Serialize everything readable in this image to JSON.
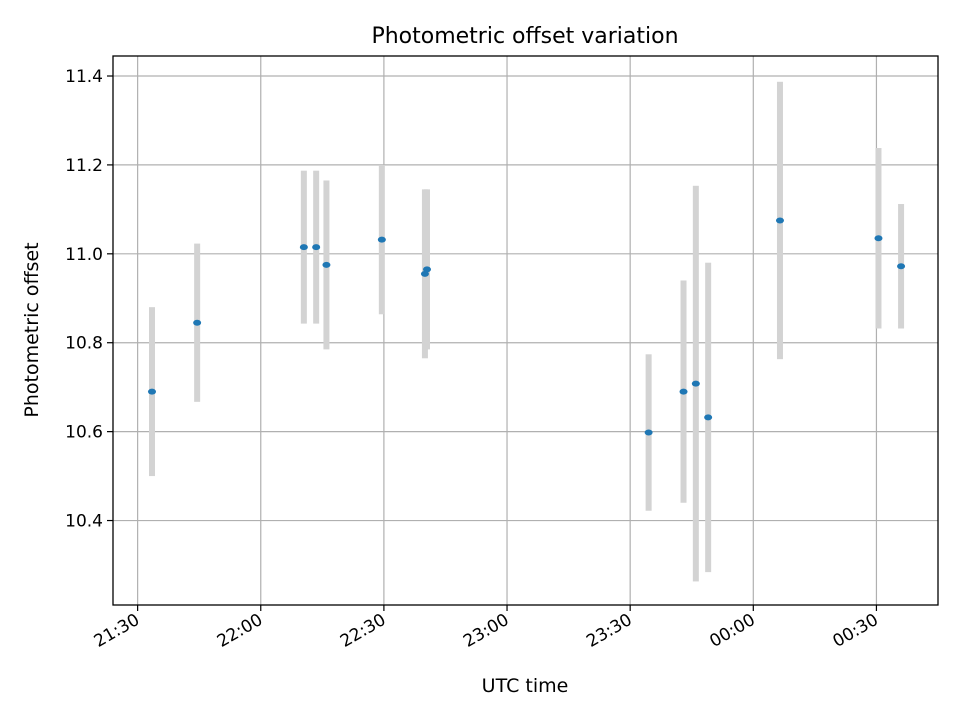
{
  "chart_data": {
    "type": "scatter",
    "title": "Photometric offset variation",
    "xlabel": "UTC time",
    "ylabel": "Photometric offset",
    "x_axis_type": "time",
    "xlim": [
      "21:24",
      "00:45"
    ],
    "ylim": [
      10.21,
      11.445
    ],
    "grid": true,
    "colors": {
      "points": "#1f77b4",
      "error_bars": "#d3d3d3",
      "grid": "#b0b0b0"
    },
    "x_ticks": [
      {
        "value": "21:30",
        "label": "21:30"
      },
      {
        "value": "22:00",
        "label": "22:00"
      },
      {
        "value": "22:30",
        "label": "22:30"
      },
      {
        "value": "23:00",
        "label": "23:00"
      },
      {
        "value": "23:30",
        "label": "23:30"
      },
      {
        "value": "00:00",
        "label": "00:00"
      },
      {
        "value": "00:30",
        "label": "00:30"
      }
    ],
    "y_ticks": [
      {
        "value": 10.4,
        "label": "10.4"
      },
      {
        "value": 10.6,
        "label": "10.6"
      },
      {
        "value": 10.8,
        "label": "10.8"
      },
      {
        "value": 11.0,
        "label": "11.0"
      },
      {
        "value": 11.2,
        "label": "11.2"
      },
      {
        "value": 11.4,
        "label": "11.4"
      }
    ],
    "points": [
      {
        "x": "21:33:30",
        "y": 10.69,
        "err": 0.19
      },
      {
        "x": "21:44:30",
        "y": 10.845,
        "err": 0.178
      },
      {
        "x": "22:10:30",
        "y": 11.015,
        "err": 0.172
      },
      {
        "x": "22:13:30",
        "y": 11.015,
        "err": 0.172
      },
      {
        "x": "22:16:00",
        "y": 10.975,
        "err": 0.19
      },
      {
        "x": "22:29:30",
        "y": 11.032,
        "err": 0.168
      },
      {
        "x": "22:40:00",
        "y": 10.955,
        "err": 0.19
      },
      {
        "x": "22:40:30",
        "y": 10.965,
        "err": 0.18
      },
      {
        "x": "23:34:30",
        "y": 10.598,
        "err": 0.176
      },
      {
        "x": "23:43:00",
        "y": 10.69,
        "err": 0.25
      },
      {
        "x": "23:46:00",
        "y": 10.708,
        "err": 0.445
      },
      {
        "x": "23:49:00",
        "y": 10.632,
        "err": 0.348
      },
      {
        "x": "00:06:30",
        "y": 11.075,
        "err": 0.312
      },
      {
        "x": "00:30:30",
        "y": 11.035,
        "err": 0.203
      },
      {
        "x": "00:36:00",
        "y": 10.972,
        "err": 0.14
      }
    ]
  }
}
